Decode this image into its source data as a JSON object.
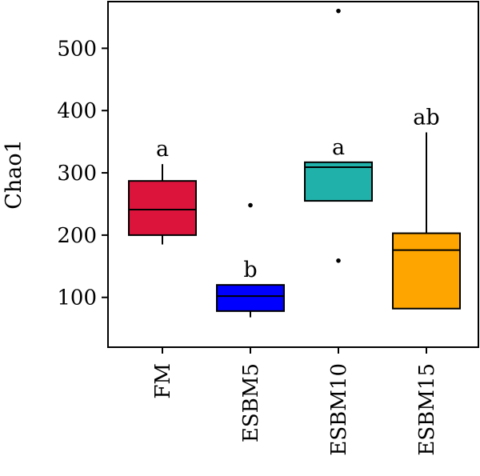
{
  "chart_data": {
    "type": "box",
    "title": "",
    "xlabel": "",
    "ylabel": "Chao1",
    "ylim": [
      20,
      575
    ],
    "yticks": [
      100,
      200,
      300,
      400,
      500
    ],
    "grid": false,
    "legend": false,
    "categories": [
      "FM",
      "ESBM5",
      "ESBM10",
      "ESBM15"
    ],
    "boxes": [
      {
        "name": "FM",
        "color": "#dc143c",
        "whisker_low": 185,
        "q1": 200,
        "median": 241,
        "q3": 287,
        "whisker_high": 314,
        "outliers": [],
        "letter": "a"
      },
      {
        "name": "ESBM5",
        "color": "#0000ff",
        "whisker_low": 68,
        "q1": 78,
        "median": 102,
        "q3": 120,
        "whisker_high": 120,
        "outliers": [
          248
        ],
        "letter": "b"
      },
      {
        "name": "ESBM10",
        "color": "#20b2aa",
        "whisker_low": 255,
        "q1": 255,
        "median": 309,
        "q3": 317,
        "whisker_high": 317,
        "outliers": [
          159,
          560
        ],
        "letter": "a"
      },
      {
        "name": "ESBM15",
        "color": "#ffa500",
        "whisker_low": 82,
        "q1": 82,
        "median": 176,
        "q3": 203,
        "whisker_high": 365,
        "outliers": [],
        "letter": "ab"
      }
    ]
  }
}
